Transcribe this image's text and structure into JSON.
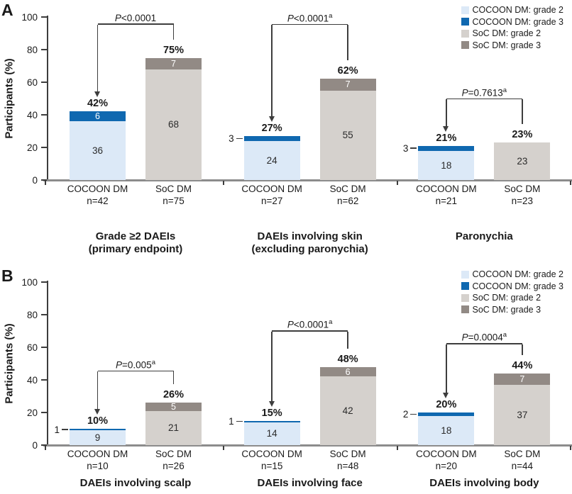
{
  "colors": {
    "cocoon_grade2": "#dce9f7",
    "cocoon_grade3": "#0f68b0",
    "soc_grade2": "#d5d1cd",
    "soc_grade3": "#928a85",
    "axis_line": "#3d3d3d",
    "baseline": "#8c8c8c",
    "text": "#1a1a1a"
  },
  "chart_data": [
    {
      "panel_label": "A",
      "type": "bar",
      "stacked": true,
      "ylabel": "Participants (%)",
      "ylim": [
        0,
        100
      ],
      "yticks": [
        0,
        20,
        40,
        60,
        80,
        100
      ],
      "grid": false,
      "legend_position": "top-right",
      "legend": [
        {
          "label": "COCOON DM: grade 2",
          "color_key": "cocoon_grade2"
        },
        {
          "label": "COCOON DM: grade 3",
          "color_key": "cocoon_grade3"
        },
        {
          "label": "SoC DM: grade 2",
          "color_key": "soc_grade2"
        },
        {
          "label": "SoC DM: grade 3",
          "color_key": "soc_grade3"
        }
      ],
      "groups": [
        {
          "category_lines": [
            "Grade ≥2 DAEIs",
            "(primary endpoint)"
          ],
          "p_prefix": "P",
          "p_rest": "<0.0001",
          "p_sup": "",
          "bars": [
            {
              "arm_label": "COCOON DM",
              "n_label": "n=42",
              "total_percent": 42,
              "percent_label": "42%",
              "grade2": 36,
              "grade3": 6,
              "grade3_label": "inside"
            },
            {
              "arm_label": "SoC DM",
              "n_label": "n=75",
              "total_percent": 75,
              "percent_label": "75%",
              "grade2": 68,
              "grade3": 7,
              "grade3_label": "inside"
            }
          ]
        },
        {
          "category_lines": [
            "DAEIs involving skin",
            "(excluding paronychia)"
          ],
          "p_prefix": "P",
          "p_rest": "<0.0001",
          "p_sup": "a",
          "bars": [
            {
              "arm_label": "COCOON DM",
              "n_label": "n=27",
              "total_percent": 27,
              "percent_label": "27%",
              "grade2": 24,
              "grade3": 3,
              "grade3_label": "outside"
            },
            {
              "arm_label": "SoC DM",
              "n_label": "n=62",
              "total_percent": 62,
              "percent_label": "62%",
              "grade2": 55,
              "grade3": 7,
              "grade3_label": "inside"
            }
          ]
        },
        {
          "category_lines": [
            "Paronychia"
          ],
          "p_prefix": "P",
          "p_rest": "=0.7613",
          "p_sup": "a",
          "bars": [
            {
              "arm_label": "COCOON DM",
              "n_label": "n=21",
              "total_percent": 21,
              "percent_label": "21%",
              "grade2": 18,
              "grade3": 3,
              "grade3_label": "outside"
            },
            {
              "arm_label": "SoC DM",
              "n_label": "n=23",
              "total_percent": 23,
              "percent_label": "23%",
              "grade2": 23,
              "grade3": 0,
              "grade3_label": "none"
            }
          ]
        }
      ]
    },
    {
      "panel_label": "B",
      "type": "bar",
      "stacked": true,
      "ylabel": "Participants (%)",
      "ylim": [
        0,
        100
      ],
      "yticks": [
        0,
        20,
        40,
        60,
        80,
        100
      ],
      "grid": false,
      "legend_position": "top-right",
      "legend": [
        {
          "label": "COCOON DM: grade 2",
          "color_key": "cocoon_grade2"
        },
        {
          "label": "COCOON DM: grade 3",
          "color_key": "cocoon_grade3"
        },
        {
          "label": "SoC DM: grade 2",
          "color_key": "soc_grade2"
        },
        {
          "label": "SoC DM: grade 3",
          "color_key": "soc_grade3"
        }
      ],
      "groups": [
        {
          "category_lines": [
            "DAEIs involving scalp"
          ],
          "p_prefix": "P",
          "p_rest": "=0.005",
          "p_sup": "a",
          "bars": [
            {
              "arm_label": "COCOON DM",
              "n_label": "n=10",
              "total_percent": 10,
              "percent_label": "10%",
              "grade2": 9,
              "grade3": 1,
              "grade3_label": "outside"
            },
            {
              "arm_label": "SoC DM",
              "n_label": "n=26",
              "total_percent": 26,
              "percent_label": "26%",
              "grade2": 21,
              "grade3": 5,
              "grade3_label": "inside"
            }
          ]
        },
        {
          "category_lines": [
            "DAEIs involving face"
          ],
          "p_prefix": "P",
          "p_rest": "<0.0001",
          "p_sup": "a",
          "bars": [
            {
              "arm_label": "COCOON DM",
              "n_label": "n=15",
              "total_percent": 15,
              "percent_label": "15%",
              "grade2": 14,
              "grade3": 1,
              "grade3_label": "outside"
            },
            {
              "arm_label": "SoC DM",
              "n_label": "n=48",
              "total_percent": 48,
              "percent_label": "48%",
              "grade2": 42,
              "grade3": 6,
              "grade3_label": "inside"
            }
          ]
        },
        {
          "category_lines": [
            "DAEIs involving body"
          ],
          "p_prefix": "P",
          "p_rest": "=0.0004",
          "p_sup": "a",
          "bars": [
            {
              "arm_label": "COCOON DM",
              "n_label": "n=20",
              "total_percent": 20,
              "percent_label": "20%",
              "grade2": 18,
              "grade3": 2,
              "grade3_label": "outside"
            },
            {
              "arm_label": "SoC DM",
              "n_label": "n=44",
              "total_percent": 44,
              "percent_label": "44%",
              "grade2": 37,
              "grade3": 7,
              "grade3_label": "inside"
            }
          ]
        }
      ]
    }
  ]
}
